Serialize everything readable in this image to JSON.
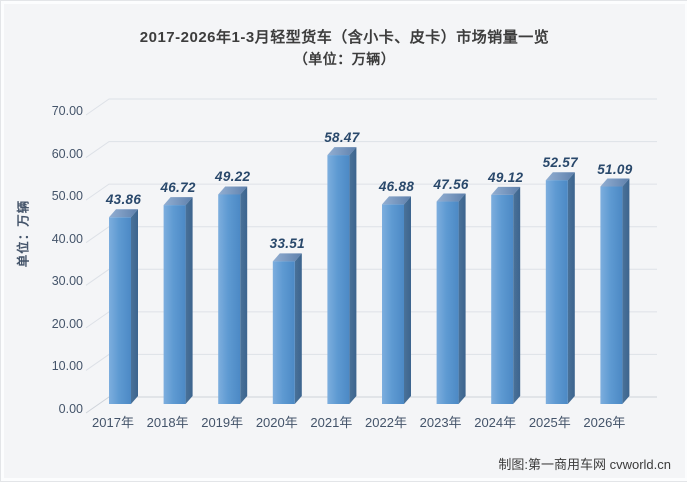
{
  "title": {
    "line1": "2017-2026年1-3月轻型货车（含小卡、皮卡）市场销量一览",
    "line2": "（单位：万辆）"
  },
  "footer": {
    "credit": "制图:第一商用车网 cvworld.cn"
  },
  "chart_data": {
    "type": "bar",
    "style": "3d-column",
    "title": "2017-2026年1-3月轻型货车（含小卡、皮卡）市场销量一览",
    "subtitle": "（单位：万辆）",
    "categories": [
      "2017年",
      "2018年",
      "2019年",
      "2020年",
      "2021年",
      "2022年",
      "2023年",
      "2024年",
      "2025年",
      "2026年"
    ],
    "values": [
      43.86,
      46.72,
      49.22,
      33.51,
      58.47,
      46.88,
      47.56,
      49.12,
      52.57,
      51.09
    ],
    "value_labels": [
      "43.86",
      "46.72",
      "49.22",
      "33.51",
      "58.47",
      "46.88",
      "47.56",
      "49.12",
      "52.57",
      "51.09"
    ],
    "ylabel": "单位：万辆",
    "xlabel": "",
    "ylim": [
      0,
      70
    ],
    "ytick_step": 10,
    "yticks": [
      "0.00",
      "10.00",
      "20.00",
      "30.00",
      "40.00",
      "50.00",
      "60.00",
      "70.00"
    ],
    "grid": true,
    "legend": false,
    "colors": {
      "bar_front_light": "#7daede",
      "bar_front_mid": "#5e9ad2",
      "bar_front_dark": "#4c89c5",
      "bar_top_light": "#93afd2",
      "bar_top_dark": "#5e80ac",
      "bar_side_light": "#4a7299",
      "bar_side_dark": "#3c648e",
      "value_label": "#29486b",
      "axis_text": "#44546a",
      "gridline": "#dde1e7",
      "floor_line": "#ced3da",
      "background": "#f4f5f7"
    }
  }
}
